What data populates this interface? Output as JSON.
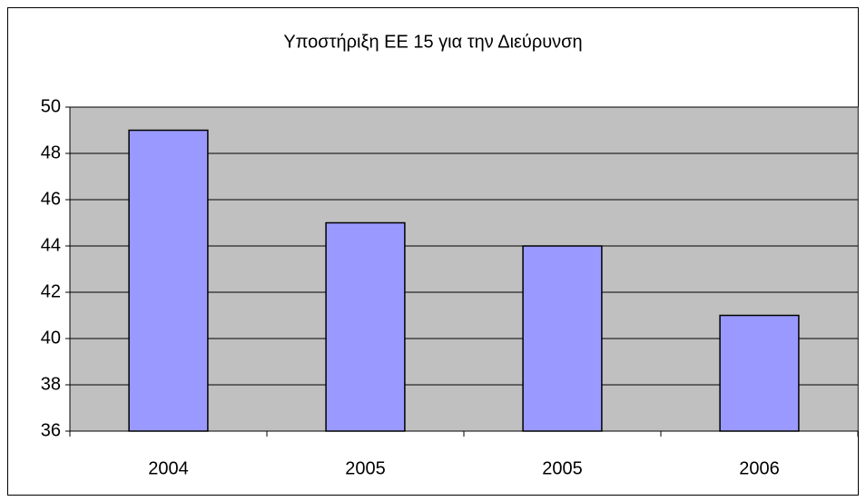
{
  "chart_data": {
    "type": "bar",
    "title": "Υποστήριξη ΕΕ 15 για την Διεύρυνση",
    "categories": [
      "2004",
      "2005",
      "2005",
      "2006"
    ],
    "values": [
      49,
      45,
      44,
      41
    ],
    "color": "#9999ff",
    "plot_background": "#c0c0c0",
    "ylim": [
      36,
      50
    ],
    "yticks": [
      36,
      38,
      40,
      42,
      44,
      46,
      48,
      50
    ],
    "grid": true
  }
}
